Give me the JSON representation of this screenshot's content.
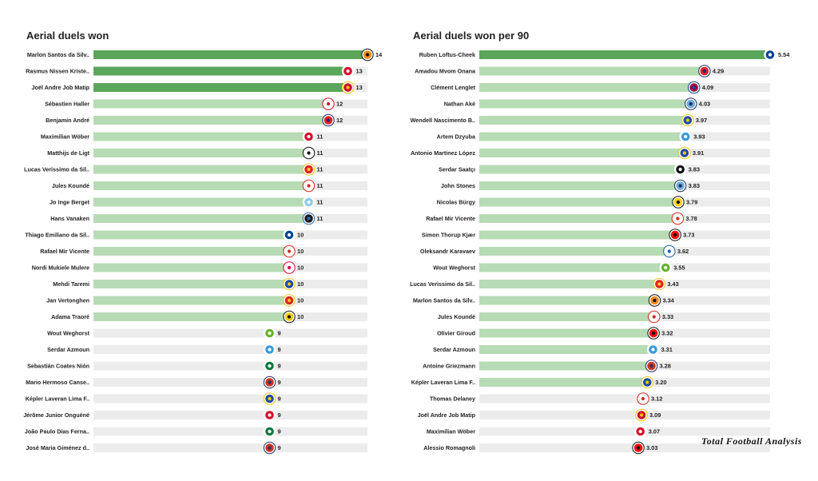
{
  "chart_data": [
    {
      "type": "bar",
      "orientation": "horizontal",
      "title": "Aerial duels won",
      "xlim": [
        0,
        14
      ],
      "grid": false,
      "colors": {
        "top": "#5aa65a",
        "mid": "#b7dbb4",
        "low": "#ececec",
        "track": "#ececec"
      },
      "categories": [
        "Marlon Santos da Silv..",
        "Rasmus Nissen Kriste..",
        "Joël Andre Job Matip",
        "Sébastien Haller",
        "Benjamin André",
        "Maximilian Wöber",
        "Matthijs de Ligt",
        "Lucas Verissimo da Sil..",
        "Jules Koundé",
        "Jo Inge Berget",
        "Hans Vanaken",
        "Thiago Emiliano da Sil..",
        "Rafael Mir Vicente",
        "Nordi Mukiele Mulere",
        "Mehdi Taremi",
        "Jan Vertonghen",
        "Adama Traoré",
        "Wout Weghorst",
        "Serdar Azmoun",
        "Sebastián Coates Nión",
        "Mario Hermoso Canse..",
        "Képler Laveran Lima F..",
        "Jérôme Junior Onguéné",
        "João Paulo Dias Ferna..",
        "José Maria Giménez d.."
      ],
      "values": [
        14,
        13,
        13,
        12,
        12,
        11,
        11,
        11,
        11,
        11,
        11,
        10,
        10,
        10,
        10,
        10,
        10,
        9,
        9,
        9,
        9,
        9,
        9,
        9,
        9
      ],
      "value_labels": [
        "14",
        "13",
        "13",
        "12",
        "12",
        "11",
        "11",
        "11",
        "11",
        "11",
        "11",
        "10",
        "10",
        "10",
        "10",
        "10",
        "10",
        "9",
        "9",
        "9",
        "9",
        "9",
        "9",
        "9",
        "9"
      ],
      "club_icons": [
        "shakhtar-badge-icon",
        "salzburg-badge-icon",
        "liverpool-badge-icon",
        "ajax-badge-icon",
        "lille-badge-icon",
        "salzburg-badge-icon",
        "juventus-badge-icon",
        "benfica-badge-icon",
        "sevilla-badge-icon",
        "malmo-badge-icon",
        "club-brugge-badge-icon",
        "chelsea-badge-icon",
        "sevilla-badge-icon",
        "leipzig-badge-icon",
        "porto-badge-icon",
        "benfica-badge-icon",
        "sheriff-badge-icon",
        "wolfsburg-badge-icon",
        "zenit-badge-icon",
        "sporting-badge-icon",
        "atletico-badge-icon",
        "porto-badge-icon",
        "salzburg-badge-icon",
        "sporting-badge-icon",
        "atletico-badge-icon"
      ]
    },
    {
      "type": "bar",
      "orientation": "horizontal",
      "title": "Aerial duels won per 90",
      "xlim": [
        0,
        5.54
      ],
      "grid": false,
      "colors": {
        "top": "#5aa65a",
        "mid": "#b7dbb4",
        "low": "#ececec",
        "track": "#ececec"
      },
      "categories": [
        "Ruben Loftus-Cheek",
        "Amadou Mvom Onana",
        "Clément Lenglet",
        "Nathan Aké",
        "Wendell Nascimento B..",
        "Artem Dzyuba",
        "Antonio Martinez López",
        "Serdar Saatçı",
        "John Stones",
        "Nicolas Bürgy",
        "Rafael Mir Vicente",
        "Simon Thorup Kjær",
        "Oleksandr Karavaev",
        "Wout Weghorst",
        "Lucas Verissimo da Sil..",
        "Marlon Santos da Silv..",
        "Jules Koundé",
        "Olivier Giroud",
        "Serdar Azmoun",
        "Antoine Griezmann",
        "Képler Laveran Lima F..",
        "Thomas Delaney",
        "Joël Andre Job Matip",
        "Maximilian Wöber",
        "Alessio Romagnoli"
      ],
      "values": [
        5.54,
        4.29,
        4.09,
        4.03,
        3.97,
        3.93,
        3.91,
        3.83,
        3.83,
        3.79,
        3.78,
        3.73,
        3.62,
        3.55,
        3.43,
        3.34,
        3.33,
        3.32,
        3.31,
        3.28,
        3.2,
        3.12,
        3.09,
        3.07,
        3.03
      ],
      "value_labels": [
        "5.54",
        "4.29",
        "4.09",
        "4.03",
        "3.97",
        "3.93",
        "3.91",
        "3.83",
        "3.83",
        "3.79",
        "3.78",
        "3.73",
        "3.62",
        "3.55",
        "3.43",
        "3.34",
        "3.33",
        "3.32",
        "3.31",
        "3.28",
        "3.20",
        "3.12",
        "3.09",
        "3.07",
        "3.03"
      ],
      "club_icons": [
        "chelsea-badge-icon",
        "lille-badge-icon",
        "barcelona-badge-icon",
        "man-city-badge-icon",
        "porto-badge-icon",
        "zenit-badge-icon",
        "porto-badge-icon",
        "besiktas-badge-icon",
        "man-city-badge-icon",
        "young-boys-badge-icon",
        "sevilla-badge-icon",
        "milan-badge-icon",
        "dynamo-kyiv-badge-icon",
        "wolfsburg-badge-icon",
        "benfica-badge-icon",
        "shakhtar-badge-icon",
        "sevilla-badge-icon",
        "milan-badge-icon",
        "zenit-badge-icon",
        "atletico-badge-icon",
        "porto-badge-icon",
        "sevilla-badge-icon",
        "liverpool-badge-icon",
        "salzburg-badge-icon",
        "milan-badge-icon"
      ]
    }
  ],
  "watermark": "Total Football Analysis",
  "watermark_icon": "total-football-analysis-logo-icon"
}
